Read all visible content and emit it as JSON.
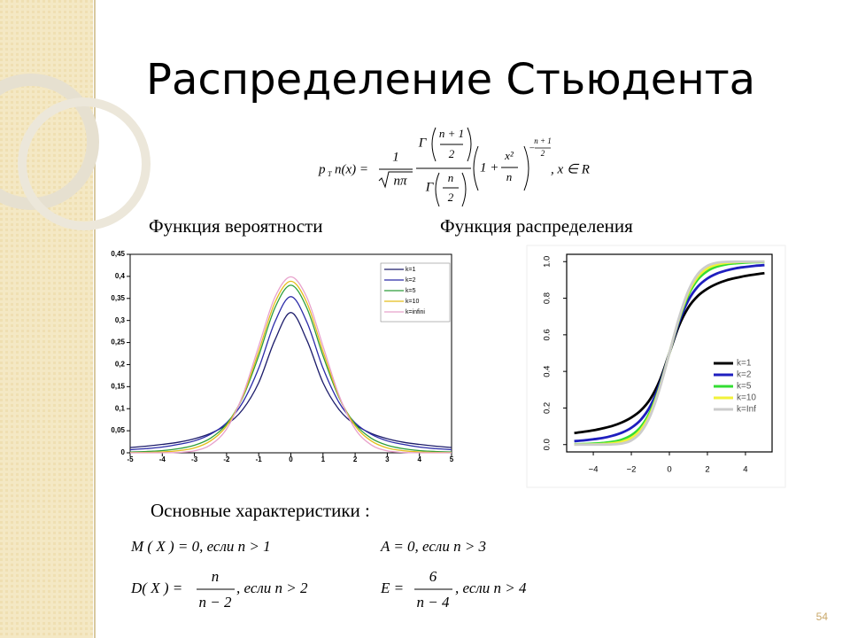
{
  "title": "Распределение Стьюдента",
  "formula": {
    "p": "p",
    "sub": "T",
    "lhs": "n(x) =",
    "one": "1",
    "root": "nπ",
    "gamma_top": "Γ",
    "top_num": "n + 1",
    "top_den": "2",
    "gamma_bot": "Γ",
    "bot_num": "n",
    "bot_den": "2",
    "base": "1 +",
    "x_num": "x²",
    "x_den": "n",
    "exp_sign": "−",
    "exp_num": "n + 1",
    "exp_den": "2",
    "tail": ", x ∈ R"
  },
  "chart_data": [
    {
      "type": "line",
      "title": "Функция вероятности",
      "x": [
        -5,
        -4.5,
        -4,
        -3.5,
        -3,
        -2.5,
        -2,
        -1.5,
        -1,
        -0.5,
        0,
        0.5,
        1,
        1.5,
        2,
        2.5,
        3,
        3.5,
        4,
        4.5,
        5
      ],
      "series": [
        {
          "name": "k=1",
          "color": "#1c1c6b",
          "values": [
            0.012,
            0.015,
            0.019,
            0.024,
            0.032,
            0.044,
            0.064,
            0.098,
            0.159,
            0.255,
            0.318,
            0.255,
            0.159,
            0.098,
            0.064,
            0.044,
            0.032,
            0.024,
            0.019,
            0.015,
            0.012
          ]
        },
        {
          "name": "k=2",
          "color": "#2b2ba8",
          "values": [
            0.0071,
            0.0095,
            0.013,
            0.019,
            0.027,
            0.042,
            0.068,
            0.114,
            0.192,
            0.296,
            0.354,
            0.296,
            0.192,
            0.114,
            0.068,
            0.042,
            0.027,
            0.019,
            0.013,
            0.0095,
            0.0071
          ]
        },
        {
          "name": "k=5",
          "color": "#2e9e3a",
          "values": [
            0.0018,
            0.003,
            0.0051,
            0.0093,
            0.017,
            0.033,
            0.065,
            0.125,
            0.22,
            0.328,
            0.38,
            0.328,
            0.22,
            0.125,
            0.065,
            0.033,
            0.017,
            0.0093,
            0.0051,
            0.003,
            0.0018
          ]
        },
        {
          "name": "k=10",
          "color": "#e3be1a",
          "values": [
            0.0004,
            0.0009,
            0.002,
            0.0048,
            0.011,
            0.027,
            0.061,
            0.127,
            0.23,
            0.34,
            0.389,
            0.34,
            0.23,
            0.127,
            0.061,
            0.027,
            0.011,
            0.0048,
            0.002,
            0.0009,
            0.0004
          ]
        },
        {
          "name": "k=infini",
          "color": "#e8a2cc",
          "values": [
            0,
            0,
            0.0001,
            0.0009,
            0.0044,
            0.018,
            0.054,
            0.13,
            0.242,
            0.352,
            0.399,
            0.352,
            0.242,
            0.13,
            0.054,
            0.018,
            0.0044,
            0.0009,
            0.0001,
            0,
            0
          ]
        }
      ],
      "xlim": [
        -5,
        5
      ],
      "ylim": [
        0,
        0.45
      ],
      "xticks": [
        -5,
        -4,
        -3,
        -2,
        -1,
        0,
        1,
        2,
        3,
        4,
        5
      ],
      "yticks": [
        {
          "value": 0,
          "label": "0"
        },
        {
          "value": 0.05,
          "label": "0,05"
        },
        {
          "value": 0.1,
          "label": "0,1"
        },
        {
          "value": 0.15,
          "label": "0,15"
        },
        {
          "value": 0.2,
          "label": "0,2"
        },
        {
          "value": 0.25,
          "label": "0,25"
        },
        {
          "value": 0.3,
          "label": "0,3"
        },
        {
          "value": 0.35,
          "label": "0,35"
        },
        {
          "value": 0.4,
          "label": "0,4"
        },
        {
          "value": 0.45,
          "label": "0,45"
        }
      ],
      "legend": "upper right",
      "grid": false
    },
    {
      "type": "line",
      "title": "Функция распределения",
      "x": [
        -5,
        -4.5,
        -4,
        -3.5,
        -3,
        -2.5,
        -2,
        -1.5,
        -1,
        -0.5,
        0,
        0.5,
        1,
        1.5,
        2,
        2.5,
        3,
        3.5,
        4,
        4.5,
        5
      ],
      "series": [
        {
          "name": "k=1",
          "color": "#000000",
          "values": [
            0.063,
            0.07,
            0.078,
            0.089,
            0.102,
            0.121,
            0.148,
            0.187,
            0.25,
            0.352,
            0.5,
            0.648,
            0.75,
            0.813,
            0.852,
            0.879,
            0.898,
            0.911,
            0.922,
            0.93,
            0.937
          ]
        },
        {
          "name": "k=2",
          "color": "#1f1fbf",
          "values": [
            0.019,
            0.023,
            0.029,
            0.036,
            0.048,
            0.065,
            0.092,
            0.136,
            0.211,
            0.333,
            0.5,
            0.667,
            0.789,
            0.864,
            0.908,
            0.935,
            0.952,
            0.964,
            0.971,
            0.977,
            0.981
          ]
        },
        {
          "name": "k=5",
          "color": "#33dd33",
          "values": [
            0.002,
            0.003,
            0.005,
            0.009,
            0.015,
            0.027,
            0.051,
            0.097,
            0.182,
            0.319,
            0.5,
            0.681,
            0.818,
            0.903,
            0.949,
            0.973,
            0.985,
            0.991,
            0.995,
            0.997,
            0.998
          ]
        },
        {
          "name": "k=10",
          "color": "#f2f23a",
          "values": [
            0.0003,
            0.0006,
            0.001,
            0.003,
            0.007,
            0.016,
            0.037,
            0.082,
            0.17,
            0.314,
            0.5,
            0.686,
            0.83,
            0.918,
            0.963,
            0.984,
            0.993,
            0.997,
            0.999,
            0.9994,
            0.9997
          ]
        },
        {
          "name": "k=Inf",
          "color": "#cccccc",
          "values": [
            0,
            0,
            0,
            0.0002,
            0.0013,
            0.006,
            0.023,
            0.067,
            0.159,
            0.309,
            0.5,
            0.691,
            0.841,
            0.933,
            0.977,
            0.994,
            0.9987,
            0.9998,
            1,
            1,
            1
          ]
        }
      ],
      "xlim": [
        -5.4,
        5.4
      ],
      "ylim": [
        -0.04,
        1.04
      ],
      "xticks": [
        {
          "value": -4,
          "label": "−4"
        },
        {
          "value": -2,
          "label": "−2"
        },
        0,
        2,
        4
      ],
      "yticks": [
        {
          "value": 0,
          "label": "0.0"
        },
        {
          "value": 0.2,
          "label": "0.2"
        },
        {
          "value": 0.4,
          "label": "0.4"
        },
        {
          "value": 0.6,
          "label": "0.6"
        },
        {
          "value": 0.8,
          "label": "0.8"
        },
        {
          "value": 1,
          "label": "1.0"
        }
      ],
      "legend": "lower right",
      "grid": false
    }
  ],
  "characteristics": {
    "label": "Основные характеристики :",
    "items": [
      {
        "text": "M ( X ) = 0, если  n > 1"
      },
      {
        "text": "A = 0, если  n > 3"
      },
      {
        "lhs": "D( X ) =",
        "num": "n",
        "den": "n − 2",
        "rest": ", если  n > 2"
      },
      {
        "lhs": "E =",
        "num": "6",
        "den": "n − 4",
        "rest": ", если  n > 4"
      }
    ]
  },
  "page_number": "54"
}
